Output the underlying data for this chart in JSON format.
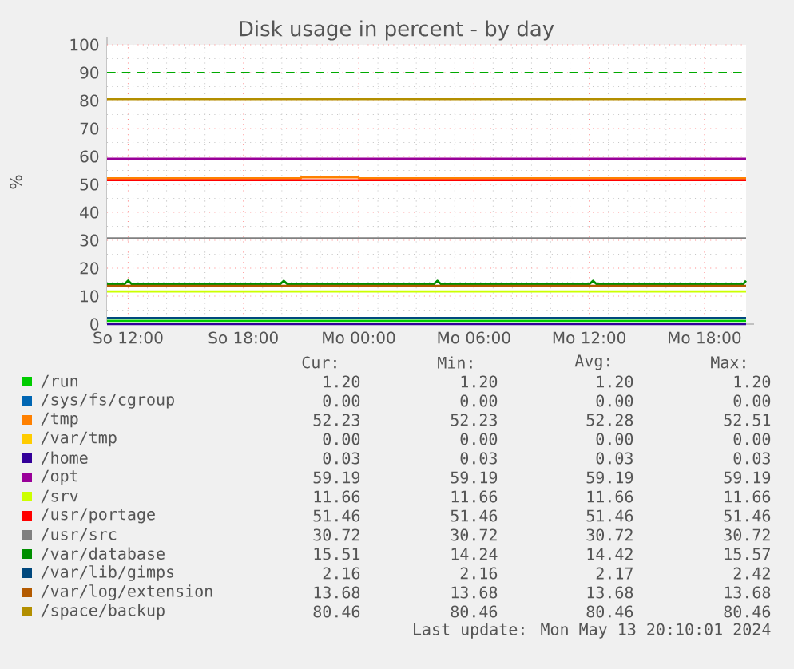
{
  "chart_data": {
    "type": "line",
    "title": "Disk usage in percent - by day",
    "ylabel": "%",
    "xlim": [
      "2024-05-12T10:54",
      "2024-05-13T20:10"
    ],
    "ylim": [
      0,
      100
    ],
    "xticks": [
      {
        "value": "2024-05-12T12:00",
        "label": "So 12:00"
      },
      {
        "value": "2024-05-12T18:00",
        "label": "So 18:00"
      },
      {
        "value": "2024-05-13T00:00",
        "label": "Mo 00:00"
      },
      {
        "value": "2024-05-13T06:00",
        "label": "Mo 06:00"
      },
      {
        "value": "2024-05-13T12:00",
        "label": "Mo 12:00"
      },
      {
        "value": "2024-05-13T18:00",
        "label": "Mo 18:00"
      }
    ],
    "yticks": [
      0,
      10,
      20,
      30,
      40,
      50,
      60,
      70,
      80,
      90,
      100
    ],
    "grid": true,
    "legend": "bottom",
    "line_style": "solid",
    "ref_lines": [
      {
        "axis": "y",
        "value": 90,
        "color": "#00aa00",
        "line_style": "dashed"
      }
    ],
    "series": [
      {
        "name": "/run",
        "color": "#00cc00",
        "x": [
          "2024-05-12T10:54",
          "2024-05-13T20:10"
        ],
        "values": [
          1.2,
          1.2
        ]
      },
      {
        "name": "/sys/fs/cgroup",
        "color": "#0066b3"
      },
      {
        "name": "/tmp",
        "color": "#ff8000",
        "x": [
          "2024-05-12T10:54",
          "2024-05-12T21:00",
          "2024-05-12T21:00",
          "2024-05-13T00:00",
          "2024-05-13T00:00",
          "2024-05-13T20:10"
        ],
        "values": [
          52.2,
          52.2,
          52.5,
          52.5,
          52.2,
          52.2
        ]
      },
      {
        "name": "/var/tmp",
        "color": "#ffcc00"
      },
      {
        "name": "/home",
        "color": "#330099",
        "x": [
          "2024-05-12T10:54",
          "2024-05-13T20:10"
        ],
        "values": [
          0,
          0
        ]
      },
      {
        "name": "/opt",
        "color": "#990099",
        "x": [
          "2024-05-12T10:54",
          "2024-05-13T20:10"
        ],
        "values": [
          59.2,
          59.2
        ]
      },
      {
        "name": "/srv",
        "color": "#ccff00",
        "x": [
          "2024-05-12T10:54",
          "2024-05-13T20:10"
        ],
        "values": [
          11.7,
          11.7
        ]
      },
      {
        "name": "/usr/portage",
        "color": "#ff0000",
        "x": [
          "2024-05-12T10:54",
          "2024-05-13T20:10"
        ],
        "values": [
          51.5,
          51.5
        ]
      },
      {
        "name": "/usr/src",
        "color": "#808080",
        "x": [
          "2024-05-12T10:54",
          "2024-05-13T20:10"
        ],
        "values": [
          30.7,
          30.7
        ]
      },
      {
        "name": "/var/database",
        "color": "#008f00",
        "x": [
          "2024-05-12T10:54",
          "2024-05-12T11:48",
          "2024-05-12T12:00",
          "2024-05-12T12:12",
          "2024-05-12T19:54",
          "2024-05-12T20:06",
          "2024-05-12T20:18",
          "2024-05-13T03:54",
          "2024-05-13T04:06",
          "2024-05-13T04:18",
          "2024-05-13T12:00",
          "2024-05-13T12:12",
          "2024-05-13T12:24",
          "2024-05-13T20:00",
          "2024-05-13T20:10"
        ],
        "values": [
          14.2,
          14.2,
          15.6,
          14.2,
          14.2,
          15.5,
          14.2,
          14.2,
          15.5,
          14.2,
          14.2,
          15.5,
          14.2,
          14.2,
          15.5
        ]
      },
      {
        "name": "/var/lib/gimps",
        "color": "#00487d",
        "x": [
          "2024-05-12T10:54",
          "2024-05-13T20:10"
        ],
        "values": [
          2.2,
          2.2
        ]
      },
      {
        "name": "/var/log/extension",
        "color": "#b35a00",
        "x": [
          "2024-05-12T10:54",
          "2024-05-13T20:10"
        ],
        "values": [
          13.7,
          13.7
        ]
      },
      {
        "name": "/space/backup",
        "color": "#b38f00",
        "x": [
          "2024-05-12T10:54",
          "2024-05-13T20:10"
        ],
        "values": [
          80.5,
          80.5
        ]
      }
    ],
    "annotations": [
      "Cur:",
      "Min:",
      "Avg:",
      "Max:",
      "1.20",
      "1.20",
      "1.20",
      "1.20",
      "0.00",
      "0.00",
      "0.00",
      "0.00",
      "52.23",
      "52.23",
      "52.28",
      "52.51",
      "0.00",
      "0.00",
      "0.00",
      "0.00",
      "0.03",
      "0.03",
      "0.03",
      "0.03",
      "59.19",
      "59.19",
      "59.19",
      "59.19",
      "11.66",
      "11.66",
      "11.66",
      "11.66",
      "51.46",
      "51.46",
      "51.46",
      "51.46",
      "30.72",
      "30.72",
      "30.72",
      "30.72",
      "15.51",
      "14.24",
      "14.42",
      "15.57",
      "2.16",
      "2.16",
      "2.17",
      "2.42",
      "13.68",
      "13.68",
      "13.68",
      "13.68",
      "80.46",
      "80.46",
      "80.46",
      "80.46",
      "Last update: Mon May 13 20:10:01 2024"
    ]
  }
}
